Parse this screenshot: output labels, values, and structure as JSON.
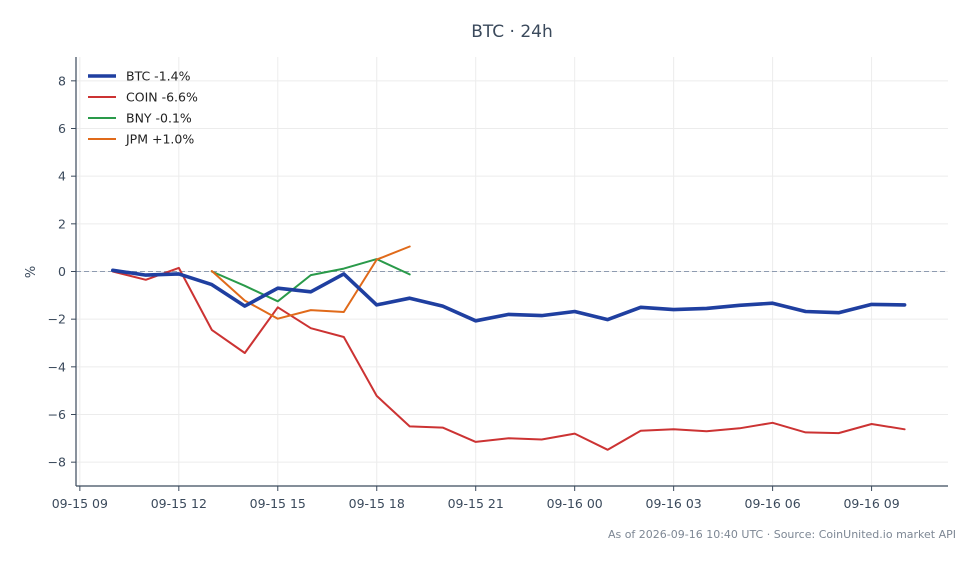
{
  "chart_data": {
    "type": "line",
    "title": "BTC · 24h",
    "xlabel": "",
    "ylabel": "%",
    "xlim": [
      "2026-09-15 08:53",
      "2026-09-16 11:19"
    ],
    "ylim": [
      -9,
      9
    ],
    "y_ticks": [
      -8,
      -6,
      -4,
      -2,
      0,
      2,
      4,
      6,
      8
    ],
    "x_ticks": [
      "2026-09-15 09:00",
      "2026-09-15 12:00",
      "2026-09-15 15:00",
      "2026-09-15 18:00",
      "2026-09-15 21:00",
      "2026-09-16 00:00",
      "2026-09-16 03:00",
      "2026-09-16 06:00",
      "2026-09-16 09:00"
    ],
    "x_tick_labels": [
      "09-15 09",
      "09-15 12",
      "09-15 15",
      "09-15 18",
      "09-15 21",
      "09-16 00",
      "09-16 03",
      "09-16 06",
      "09-16 09"
    ],
    "grid": true,
    "zero_line": true,
    "legend_position": "top-left",
    "series": [
      {
        "name": "BTC -1.4%",
        "color": "#1f3fa0",
        "line_style": "thick",
        "x": [
          "2026-09-15 10:00",
          "2026-09-15 11:00",
          "2026-09-15 12:00",
          "2026-09-15 13:00",
          "2026-09-15 14:00",
          "2026-09-15 15:00",
          "2026-09-15 16:00",
          "2026-09-15 17:00",
          "2026-09-15 18:00",
          "2026-09-15 19:00",
          "2026-09-15 20:00",
          "2026-09-15 21:00",
          "2026-09-15 22:00",
          "2026-09-15 23:00",
          "2026-09-16 00:00",
          "2026-09-16 01:00",
          "2026-09-16 02:00",
          "2026-09-16 03:00",
          "2026-09-16 04:00",
          "2026-09-16 05:00",
          "2026-09-16 06:00",
          "2026-09-16 07:00",
          "2026-09-16 08:00",
          "2026-09-16 09:00",
          "2026-09-16 10:00"
        ],
        "y": [
          0.05,
          -0.15,
          -0.1,
          -0.55,
          -1.45,
          -0.7,
          -0.85,
          -0.1,
          -1.4,
          -1.12,
          -1.45,
          -2.07,
          -1.8,
          -1.85,
          -1.68,
          -2.02,
          -1.5,
          -1.6,
          -1.55,
          -1.42,
          -1.33,
          -1.68,
          -1.73,
          -1.38,
          -1.4
        ]
      },
      {
        "name": "COIN -6.6%",
        "color": "#cc3333",
        "line_style": "normal",
        "x": [
          "2026-09-15 10:00",
          "2026-09-15 11:00",
          "2026-09-15 12:00",
          "2026-09-15 13:00",
          "2026-09-15 14:00",
          "2026-09-15 15:00",
          "2026-09-15 16:00",
          "2026-09-15 17:00",
          "2026-09-15 18:00",
          "2026-09-15 19:00",
          "2026-09-15 20:00",
          "2026-09-15 21:00",
          "2026-09-15 22:00",
          "2026-09-15 23:00",
          "2026-09-16 00:00",
          "2026-09-16 01:00",
          "2026-09-16 02:00",
          "2026-09-16 03:00",
          "2026-09-16 04:00",
          "2026-09-16 05:00",
          "2026-09-16 06:00",
          "2026-09-16 07:00",
          "2026-09-16 08:00",
          "2026-09-16 09:00",
          "2026-09-16 10:00"
        ],
        "y": [
          0.0,
          -0.35,
          0.15,
          -2.45,
          -3.42,
          -1.5,
          -2.38,
          -2.75,
          -5.22,
          -6.5,
          -6.55,
          -7.15,
          -7.0,
          -7.05,
          -6.8,
          -7.48,
          -6.68,
          -6.62,
          -6.7,
          -6.58,
          -6.35,
          -6.75,
          -6.78,
          -6.4,
          -6.62
        ]
      },
      {
        "name": "BNY -0.1%",
        "color": "#2a9a4a",
        "line_style": "normal",
        "x": [
          "2026-09-15 13:00",
          "2026-09-15 14:00",
          "2026-09-15 15:00",
          "2026-09-15 16:00",
          "2026-09-15 17:00",
          "2026-09-15 18:00",
          "2026-09-15 19:00"
        ],
        "y": [
          0.0,
          -0.6,
          -1.25,
          -0.15,
          0.12,
          0.52,
          -0.12
        ]
      },
      {
        "name": "JPM +1.0%",
        "color": "#e06a1a",
        "line_style": "normal",
        "x": [
          "2026-09-15 13:00",
          "2026-09-15 14:00",
          "2026-09-15 15:00",
          "2026-09-15 16:00",
          "2026-09-15 17:00",
          "2026-09-15 18:00",
          "2026-09-15 19:00"
        ],
        "y": [
          0.02,
          -1.22,
          -1.98,
          -1.62,
          -1.7,
          0.5,
          1.05
        ]
      }
    ]
  },
  "footer": {
    "source": "As of 2026-09-16 10:40 UTC · Source: CoinUnited.io market API"
  }
}
